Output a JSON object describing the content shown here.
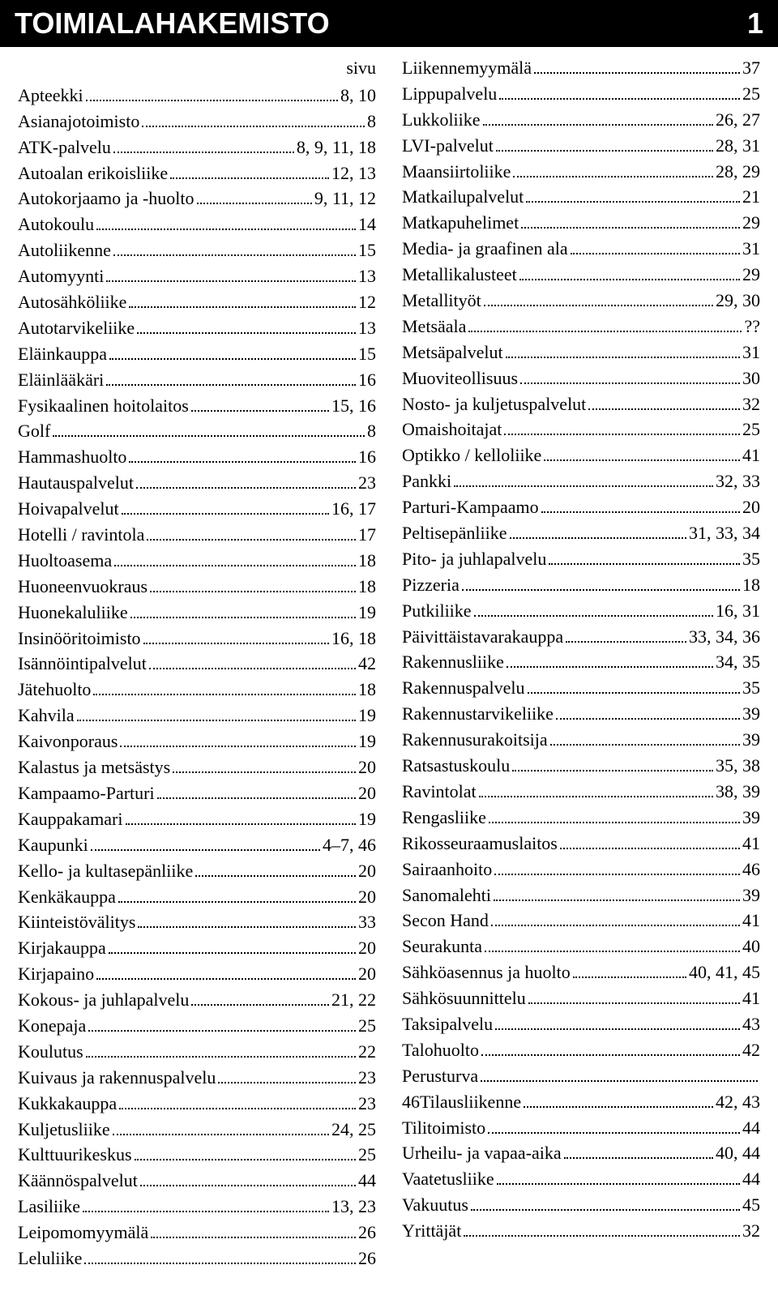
{
  "header": {
    "title": "TOIMIALAHAKEMISTO",
    "pageNum": "1"
  },
  "sivuLabel": "sivu",
  "colors": {
    "headerBg": "#000000",
    "headerFg": "#ffffff",
    "bodyBg": "#ffffff",
    "text": "#000000"
  },
  "typography": {
    "headerFont": "Arial",
    "headerSize": 36,
    "bodyFont": "Times New Roman",
    "bodySize": 22,
    "lineHeight": 1.45
  },
  "left": [
    {
      "label": "Apteekki",
      "pages": "8, 10"
    },
    {
      "label": "Asianajotoimisto",
      "pages": "8"
    },
    {
      "label": "ATK-palvelu",
      "pages": "8, 9, 11, 18"
    },
    {
      "label": "Autoalan erikoisliike",
      "pages": "12, 13"
    },
    {
      "label": "Autokorjaamo ja -huolto",
      "pages": "9, 11, 12"
    },
    {
      "label": "Autokoulu",
      "pages": "14"
    },
    {
      "label": "Autoliikenne",
      "pages": "15"
    },
    {
      "label": "Automyynti",
      "pages": "13"
    },
    {
      "label": "Autosähköliike",
      "pages": "12"
    },
    {
      "label": "Autotarvikeliike",
      "pages": "13"
    },
    {
      "label": "Eläinkauppa",
      "pages": "15"
    },
    {
      "label": "Eläinlääkäri",
      "pages": "16"
    },
    {
      "label": "Fysikaalinen hoitolaitos",
      "pages": "15, 16"
    },
    {
      "label": "Golf",
      "pages": "8"
    },
    {
      "label": "Hammashuolto",
      "pages": "16"
    },
    {
      "label": "Hautauspalvelut",
      "pages": "23"
    },
    {
      "label": "Hoivapalvelut",
      "pages": "16, 17"
    },
    {
      "label": "Hotelli / ravintola",
      "pages": "17"
    },
    {
      "label": "Huoltoasema",
      "pages": "18"
    },
    {
      "label": "Huoneenvuokraus",
      "pages": "18"
    },
    {
      "label": "Huonekaluliike",
      "pages": "19"
    },
    {
      "label": "Insinööritoimisto",
      "pages": "16, 18"
    },
    {
      "label": "Isännöintipalvelut",
      "pages": "42"
    },
    {
      "label": "Jätehuolto",
      "pages": "18"
    },
    {
      "label": "Kahvila",
      "pages": "19"
    },
    {
      "label": "Kaivonporaus",
      "pages": "19"
    },
    {
      "label": "Kalastus ja metsästys",
      "pages": "20"
    },
    {
      "label": "Kampaamo-Parturi",
      "pages": "20"
    },
    {
      "label": "Kauppakamari",
      "pages": "19"
    },
    {
      "label": "Kaupunki",
      "pages": "4–7, 46"
    },
    {
      "label": "Kello- ja kultasepänliike",
      "pages": "20"
    },
    {
      "label": "Kenkäkauppa",
      "pages": "20"
    },
    {
      "label": "Kiinteistövälitys",
      "pages": "33"
    },
    {
      "label": "Kirjakauppa",
      "pages": "20"
    },
    {
      "label": "Kirjapaino",
      "pages": "20"
    },
    {
      "label": "Kokous- ja juhlapalvelu",
      "pages": "21, 22"
    },
    {
      "label": "Konepaja",
      "pages": "25"
    },
    {
      "label": "Koulutus",
      "pages": "22"
    },
    {
      "label": "Kuivaus ja rakennuspalvelu",
      "pages": "23"
    },
    {
      "label": "Kukkakauppa",
      "pages": "23"
    },
    {
      "label": "Kuljetusliike",
      "pages": "24, 25"
    },
    {
      "label": "Kulttuurikeskus",
      "pages": "25"
    },
    {
      "label": "Käännöspalvelut",
      "pages": "44"
    },
    {
      "label": "Lasiliike",
      "pages": "13, 23"
    },
    {
      "label": "Leipomomyymälä",
      "pages": "26"
    },
    {
      "label": "Leluliike",
      "pages": "26"
    }
  ],
  "right": [
    {
      "label": "Liikennemyymälä",
      "pages": "37"
    },
    {
      "label": "Lippupalvelu",
      "pages": "25"
    },
    {
      "label": "Lukkoliike",
      "pages": "26, 27"
    },
    {
      "label": "LVI-palvelut",
      "pages": "28, 31"
    },
    {
      "label": "Maansiirtoliike",
      "pages": "28, 29"
    },
    {
      "label": "Matkailupalvelut",
      "pages": "21"
    },
    {
      "label": "Matkapuhelimet",
      "pages": "29"
    },
    {
      "label": "Media- ja graafinen ala",
      "pages": "31"
    },
    {
      "label": "Metallikalusteet",
      "pages": "29"
    },
    {
      "label": "Metallityöt",
      "pages": "29, 30"
    },
    {
      "label": "Metsäala",
      "pages": "??"
    },
    {
      "label": "Metsäpalvelut",
      "pages": "31"
    },
    {
      "label": "Muoviteollisuus",
      "pages": "30"
    },
    {
      "label": "Nosto- ja kuljetuspalvelut",
      "pages": "32"
    },
    {
      "label": "Omaishoitajat",
      "pages": "25"
    },
    {
      "label": "Optikko / kelloliike",
      "pages": "41"
    },
    {
      "label": "Pankki",
      "pages": "32, 33"
    },
    {
      "label": "Parturi-Kampaamo",
      "pages": "20"
    },
    {
      "label": "Peltisepänliike",
      "pages": "31, 33, 34"
    },
    {
      "label": "Pito- ja juhlapalvelu",
      "pages": "35"
    },
    {
      "label": "Pizzeria",
      "pages": "18"
    },
    {
      "label": "Putkiliike",
      "pages": "16, 31"
    },
    {
      "label": "Päivittäistavarakauppa",
      "pages": "33, 34, 36"
    },
    {
      "label": "Rakennusliike",
      "pages": "34, 35"
    },
    {
      "label": "Rakennuspalvelu",
      "pages": "35"
    },
    {
      "label": "Rakennustarvikeliike",
      "pages": "39"
    },
    {
      "label": "Rakennusurakoitsija",
      "pages": "39"
    },
    {
      "label": "Ratsastuskoulu",
      "pages": "35, 38"
    },
    {
      "label": "Ravintolat",
      "pages": "38, 39"
    },
    {
      "label": "Rengasliike",
      "pages": "39"
    },
    {
      "label": "Rikosseuraamuslaitos",
      "pages": "41"
    },
    {
      "label": "Sairaanhoito",
      "pages": "46"
    },
    {
      "label": "Sanomalehti",
      "pages": "39"
    },
    {
      "label": "Secon Hand",
      "pages": "41"
    },
    {
      "label": "Seurakunta",
      "pages": "40"
    },
    {
      "label": "Sähköasennus ja huolto",
      "pages": "40, 41, 45"
    },
    {
      "label": "Sähkösuunnittelu",
      "pages": "41"
    },
    {
      "label": "Taksipalvelu",
      "pages": "43"
    },
    {
      "label": "Talohuolto",
      "pages": "42"
    },
    {
      "label": "Perusturva",
      "pages": ""
    },
    {
      "label": "46Tilausliikenne",
      "pages": "42, 43"
    },
    {
      "label": "Tilitoimisto",
      "pages": "44"
    },
    {
      "label": "Urheilu- ja vapaa-aika",
      "pages": "40, 44"
    },
    {
      "label": "Vaatetusliike",
      "pages": "44"
    },
    {
      "label": "Vakuutus",
      "pages": "45"
    },
    {
      "label": "Yrittäjät",
      "pages": "32"
    }
  ]
}
